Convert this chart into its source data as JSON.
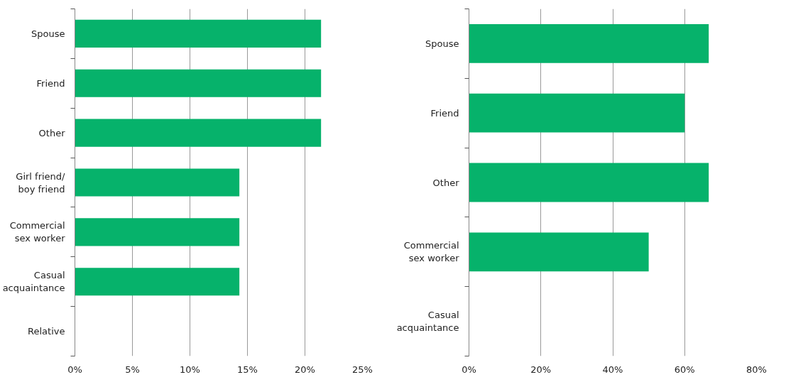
{
  "chart_data": [
    {
      "type": "bar",
      "orientation": "horizontal",
      "categories": [
        "Spouse",
        "Friend",
        "Other",
        "Girl friend/boy friend",
        "Commercial sex worker",
        "Casual acquaintance",
        "Relative"
      ],
      "values": [
        21.4,
        21.4,
        21.4,
        14.3,
        14.3,
        14.3,
        0
      ],
      "color": "#06b26b",
      "xlim": [
        0,
        25
      ],
      "xticks": [
        {
          "value": 0,
          "label": "0%"
        },
        {
          "value": 5,
          "label": "5%"
        },
        {
          "value": 10,
          "label": "10%"
        },
        {
          "value": 15,
          "label": "15%"
        },
        {
          "value": 20,
          "label": "20%"
        },
        {
          "value": 25,
          "label": "25%"
        }
      ],
      "grid": "x"
    },
    {
      "type": "bar",
      "orientation": "horizontal",
      "categories": [
        "Spouse",
        "Friend",
        "Other",
        "Commercial sex worker",
        "Casual acquaintance"
      ],
      "values": [
        66.7,
        60,
        66.7,
        50,
        0
      ],
      "color": "#06b26b",
      "xlim": [
        0,
        80
      ],
      "xticks": [
        {
          "value": 0,
          "label": "0%"
        },
        {
          "value": 20,
          "label": "20%"
        },
        {
          "value": 40,
          "label": "40%"
        },
        {
          "value": 60,
          "label": "60%"
        },
        {
          "value": 80,
          "label": "80%"
        }
      ],
      "grid": "x"
    }
  ]
}
